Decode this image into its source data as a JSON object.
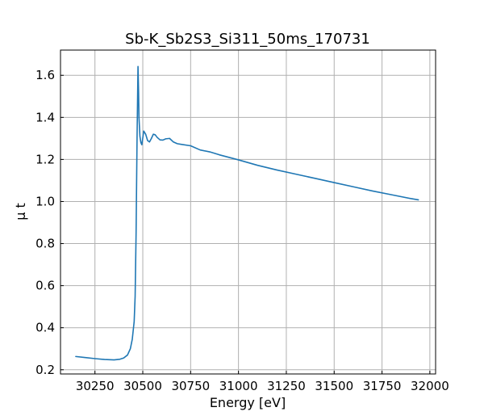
{
  "chart_data": {
    "type": "line",
    "title": "Sb-K_Sb2S3_Si311_50ms_170731",
    "xlabel": "Energy [eV]",
    "ylabel": "μ t",
    "xlim": [
      30070,
      32030
    ],
    "ylim": [
      0.18,
      1.72
    ],
    "xticks": [
      30250,
      30500,
      30750,
      31000,
      31250,
      31500,
      31750,
      32000
    ],
    "yticks": [
      0.2,
      0.4,
      0.6,
      0.8,
      1.0,
      1.2,
      1.4,
      1.6
    ],
    "xtick_labels": [
      "30250",
      "30500",
      "30750",
      "31000",
      "31250",
      "31500",
      "31750",
      "32000"
    ],
    "ytick_labels": [
      "0.2",
      "0.4",
      "0.6",
      "0.8",
      "1.0",
      "1.2",
      "1.4",
      "1.6"
    ],
    "grid": true,
    "tick_direction": "in",
    "line_color": "#1f77b4",
    "grid_color": "#b0b0b0",
    "series": [
      {
        "x": [
          30150,
          30200,
          30250,
          30300,
          30350,
          30380,
          30400,
          30420,
          30435,
          30445,
          30455,
          30460,
          30465,
          30470,
          30475,
          30478,
          30480,
          30485,
          30490,
          30495,
          30505,
          30515,
          30525,
          30535,
          30545,
          30555,
          30565,
          30575,
          30590,
          30605,
          30620,
          30640,
          30660,
          30680,
          30700,
          30750,
          30800,
          30850,
          30900,
          31000,
          31100,
          31200,
          31300,
          31400,
          31500,
          31600,
          31700,
          31800,
          31900,
          31940
        ],
        "y": [
          0.263,
          0.258,
          0.253,
          0.249,
          0.247,
          0.25,
          0.256,
          0.27,
          0.3,
          0.345,
          0.43,
          0.55,
          0.85,
          1.3,
          1.642,
          1.52,
          1.4,
          1.31,
          1.28,
          1.27,
          1.335,
          1.32,
          1.29,
          1.283,
          1.3,
          1.32,
          1.317,
          1.305,
          1.293,
          1.292,
          1.298,
          1.3,
          1.283,
          1.275,
          1.272,
          1.265,
          1.245,
          1.236,
          1.222,
          1.198,
          1.172,
          1.15,
          1.13,
          1.11,
          1.09,
          1.07,
          1.05,
          1.032,
          1.014,
          1.008
        ]
      }
    ]
  }
}
